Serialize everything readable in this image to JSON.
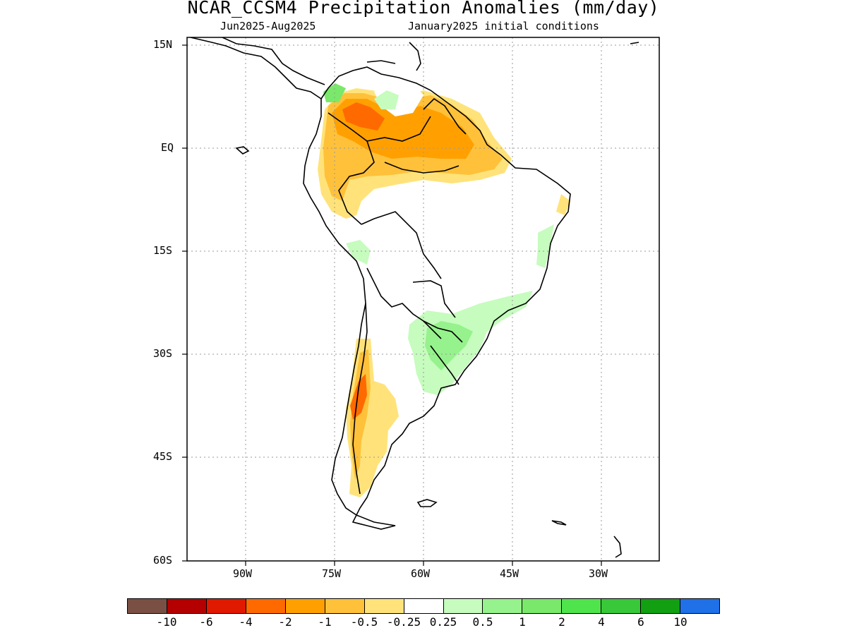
{
  "header": {
    "title": "NCAR_CCSM4 Precipitation Anomalies (mm/day)",
    "period": "Jun2025-Aug2025",
    "initial_conditions": "January2025 initial conditions"
  },
  "axes": {
    "y_ticks": [
      "15N",
      "EQ",
      "15S",
      "30S",
      "45S",
      "60S"
    ],
    "x_ticks": [
      "90W",
      "75W",
      "60W",
      "45W",
      "30W"
    ],
    "lon_range": [
      -100,
      -20
    ],
    "lat_range": [
      -60,
      15
    ],
    "grid": "dotted"
  },
  "colorbar": {
    "colors": [
      "#7a5045",
      "#b40000",
      "#e01a00",
      "#ff6a00",
      "#ffa000",
      "#ffc13a",
      "#ffe37a",
      "#ffffff",
      "#c6fcbe",
      "#96f28c",
      "#7ae86a",
      "#50e44c",
      "#38c83a",
      "#12a012",
      "#2070e8"
    ],
    "labels": [
      "-10",
      "-6",
      "-4",
      "-2",
      "-1",
      "-0.5",
      "-0.25",
      "0.25",
      "0.5",
      "1",
      "2",
      "4",
      "6",
      "10"
    ]
  }
}
